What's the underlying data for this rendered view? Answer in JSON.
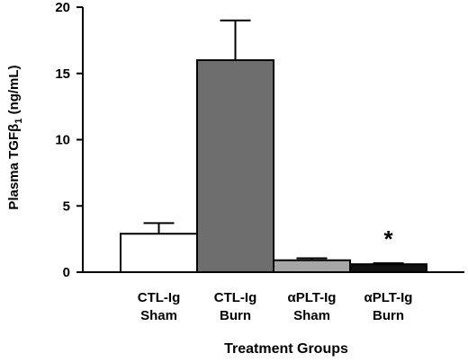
{
  "chart_data": {
    "type": "bar",
    "categories": [
      [
        "CTL-Ig",
        "Sham"
      ],
      [
        "CTL-Ig",
        "Burn"
      ],
      [
        "αPLT-Ig",
        "Sham"
      ],
      [
        "αPLT-Ig",
        "Burn"
      ]
    ],
    "values": [
      2.9,
      16.0,
      0.9,
      0.6
    ],
    "errors": [
      0.8,
      3.0,
      0.15,
      0.08
    ],
    "bar_colors": [
      "#ffffff",
      "#6e6e6e",
      "#a6a6a6",
      "#111111"
    ],
    "xlabel": "Treatment Groups",
    "ylabel": {
      "prefix": "Plasma TGFβ",
      "subscript": "1",
      "suffix": " (ng/mL)"
    },
    "ylim": [
      0,
      20
    ],
    "yticks": [
      "0",
      "5",
      "10",
      "15",
      "20"
    ],
    "annotations": [
      {
        "category_index": 3,
        "text": "*"
      }
    ],
    "grid": false,
    "legend": "none"
  }
}
